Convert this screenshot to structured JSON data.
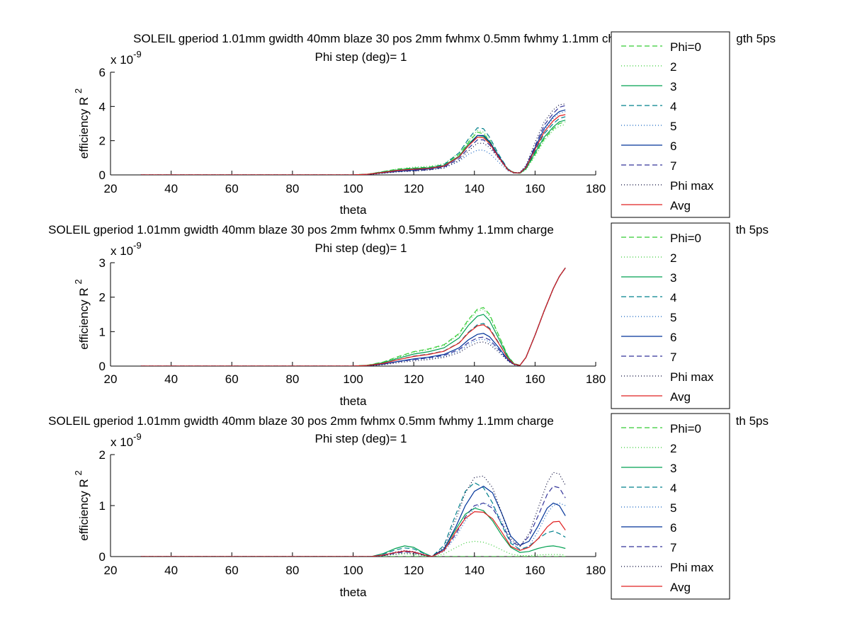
{
  "figure": {
    "background": "#ffffff"
  },
  "chart_data": [
    {
      "type": "line",
      "title": "SOLEIL gperiod 1.01mm gwidth 40mm blaze 30 pos 2mm fwhmx 0.5mm fwhmy 1.1mm charge",
      "title_suffix": "gth 5ps",
      "subtitle": "Phi step (deg)= 1",
      "xlabel": "theta",
      "ylabel": "efficiency R",
      "ylabel_sup": "2",
      "multiplier": "x 10",
      "multiplier_exp": "-9",
      "xlim": [
        20,
        180
      ],
      "ylim": [
        0,
        6
      ],
      "xticks": [
        20,
        40,
        60,
        80,
        100,
        120,
        140,
        160,
        180
      ],
      "yticks": [
        0,
        2,
        4,
        6
      ],
      "grid": false,
      "legend_position": "right",
      "x": [
        30,
        100,
        105,
        110,
        115,
        120,
        125,
        130,
        135,
        138,
        141,
        143,
        145,
        148,
        151,
        153,
        155,
        157,
        160,
        163,
        166,
        168,
        170
      ],
      "series": [
        {
          "name": "Phi=0",
          "color": "#33cc33",
          "dash": "7,4",
          "values": [
            0,
            0,
            0.05,
            0.2,
            0.35,
            0.4,
            0.45,
            0.6,
            1.2,
            1.9,
            2.5,
            2.4,
            2.0,
            1.1,
            0.35,
            0.15,
            0.1,
            0.35,
            1.2,
            2.1,
            2.7,
            3.0,
            3.1
          ]
        },
        {
          "name": "2",
          "color": "#33cc33",
          "dash": "1,3",
          "values": [
            0,
            0,
            0.05,
            0.2,
            0.35,
            0.45,
            0.5,
            0.65,
            1.3,
            2.0,
            2.6,
            2.5,
            2.1,
            1.15,
            0.35,
            0.15,
            0.08,
            0.3,
            1.1,
            2.0,
            2.6,
            2.85,
            2.95
          ]
        },
        {
          "name": "3",
          "color": "#00a050",
          "dash": "",
          "values": [
            0,
            0,
            0.04,
            0.18,
            0.3,
            0.38,
            0.42,
            0.55,
            1.1,
            1.8,
            2.3,
            2.25,
            1.9,
            1.05,
            0.3,
            0.12,
            0.1,
            0.35,
            1.3,
            2.2,
            2.8,
            3.1,
            3.2
          ]
        },
        {
          "name": "4",
          "color": "#00808c",
          "dash": "7,4",
          "values": [
            0,
            0,
            0.04,
            0.16,
            0.28,
            0.34,
            0.4,
            0.6,
            1.3,
            2.1,
            2.75,
            2.7,
            2.2,
            1.2,
            0.35,
            0.14,
            0.1,
            0.4,
            1.4,
            2.4,
            3.0,
            3.3,
            3.4
          ]
        },
        {
          "name": "5",
          "color": "#1060c0",
          "dash": "1,3",
          "values": [
            0,
            0,
            0.03,
            0.12,
            0.2,
            0.26,
            0.3,
            0.4,
            0.8,
            1.2,
            1.45,
            1.45,
            1.25,
            0.75,
            0.25,
            0.1,
            0.12,
            0.45,
            1.6,
            2.6,
            3.3,
            3.6,
            3.7
          ]
        },
        {
          "name": "6",
          "color": "#003399",
          "dash": "",
          "values": [
            0,
            0,
            0.03,
            0.13,
            0.22,
            0.28,
            0.35,
            0.5,
            1.05,
            1.7,
            2.3,
            2.3,
            1.95,
            1.1,
            0.32,
            0.13,
            0.12,
            0.45,
            1.6,
            2.7,
            3.4,
            3.7,
            3.8
          ]
        },
        {
          "name": "7",
          "color": "#333399",
          "dash": "7,4",
          "values": [
            0,
            0,
            0.03,
            0.12,
            0.2,
            0.25,
            0.3,
            0.45,
            0.95,
            1.55,
            2.05,
            2.05,
            1.75,
            1.0,
            0.3,
            0.12,
            0.12,
            0.5,
            1.7,
            2.9,
            3.6,
            3.95,
            4.05
          ]
        },
        {
          "name": "Phi max",
          "color": "#000033",
          "dash": "1,3",
          "values": [
            0,
            0,
            0.02,
            0.1,
            0.18,
            0.22,
            0.28,
            0.4,
            0.85,
            1.4,
            1.85,
            1.85,
            1.6,
            0.95,
            0.3,
            0.12,
            0.15,
            0.55,
            1.9,
            3.1,
            3.8,
            4.1,
            4.15
          ]
        },
        {
          "name": "Avg",
          "color": "#e02020",
          "dash": "",
          "values": [
            0,
            0,
            0.04,
            0.15,
            0.27,
            0.33,
            0.38,
            0.52,
            1.07,
            1.7,
            2.2,
            2.17,
            1.84,
            1.03,
            0.31,
            0.13,
            0.11,
            0.42,
            1.49,
            2.51,
            3.16,
            3.45,
            3.52
          ]
        }
      ]
    },
    {
      "type": "line",
      "title": "SOLEIL gperiod 1.01mm gwidth 40mm blaze 30 pos 2mm fwhmx 0.5mm fwhmy 1.1mm charge",
      "title_suffix": "th 5ps",
      "subtitle": "Phi step (deg)= 1",
      "xlabel": "theta",
      "ylabel": "efficiency R",
      "ylabel_sup": "2",
      "multiplier": "x 10",
      "multiplier_exp": "-9",
      "xlim": [
        20,
        180
      ],
      "ylim": [
        0,
        3
      ],
      "xticks": [
        20,
        40,
        60,
        80,
        100,
        120,
        140,
        160,
        180
      ],
      "yticks": [
        0,
        1,
        2,
        3
      ],
      "grid": false,
      "legend_position": "right",
      "x": [
        30,
        100,
        105,
        110,
        115,
        120,
        125,
        130,
        135,
        138,
        141,
        143,
        145,
        148,
        151,
        153,
        155,
        157,
        160,
        163,
        166,
        168,
        170
      ],
      "series": [
        {
          "name": "Phi=0",
          "color": "#33cc33",
          "dash": "7,4",
          "values": [
            0,
            0,
            0.03,
            0.12,
            0.28,
            0.42,
            0.5,
            0.62,
            0.95,
            1.35,
            1.65,
            1.7,
            1.5,
            0.9,
            0.3,
            0.08,
            0.02,
            0.25,
            0.9,
            1.6,
            2.25,
            2.6,
            2.85
          ]
        },
        {
          "name": "2",
          "color": "#33cc33",
          "dash": "1,3",
          "values": [
            0,
            0,
            0.03,
            0.11,
            0.26,
            0.4,
            0.48,
            0.6,
            0.92,
            1.3,
            1.6,
            1.65,
            1.45,
            0.88,
            0.3,
            0.08,
            0.02,
            0.25,
            0.9,
            1.6,
            2.25,
            2.6,
            2.85
          ]
        },
        {
          "name": "3",
          "color": "#00a050",
          "dash": "",
          "values": [
            0,
            0,
            0.025,
            0.1,
            0.23,
            0.35,
            0.42,
            0.53,
            0.82,
            1.18,
            1.45,
            1.5,
            1.32,
            0.8,
            0.27,
            0.07,
            0.02,
            0.25,
            0.9,
            1.6,
            2.25,
            2.6,
            2.85
          ]
        },
        {
          "name": "4",
          "color": "#00808c",
          "dash": "7,4",
          "values": [
            0,
            0,
            0.02,
            0.08,
            0.19,
            0.29,
            0.35,
            0.44,
            0.68,
            0.98,
            1.2,
            1.24,
            1.1,
            0.68,
            0.23,
            0.06,
            0.02,
            0.25,
            0.9,
            1.6,
            2.25,
            2.6,
            2.85
          ]
        },
        {
          "name": "5",
          "color": "#1060c0",
          "dash": "1,3",
          "values": [
            0,
            0,
            0.01,
            0.05,
            0.12,
            0.18,
            0.22,
            0.28,
            0.44,
            0.63,
            0.76,
            0.78,
            0.7,
            0.45,
            0.16,
            0.04,
            0.02,
            0.25,
            0.9,
            1.6,
            2.25,
            2.6,
            2.85
          ]
        },
        {
          "name": "6",
          "color": "#003399",
          "dash": "",
          "values": [
            0,
            0,
            0.015,
            0.06,
            0.14,
            0.21,
            0.26,
            0.34,
            0.53,
            0.76,
            0.92,
            0.95,
            0.85,
            0.54,
            0.19,
            0.05,
            0.02,
            0.25,
            0.9,
            1.6,
            2.25,
            2.6,
            2.85
          ]
        },
        {
          "name": "7",
          "color": "#333399",
          "dash": "7,4",
          "values": [
            0,
            0,
            0.012,
            0.055,
            0.13,
            0.19,
            0.24,
            0.31,
            0.48,
            0.68,
            0.82,
            0.84,
            0.76,
            0.49,
            0.17,
            0.045,
            0.02,
            0.25,
            0.9,
            1.6,
            2.25,
            2.6,
            2.85
          ]
        },
        {
          "name": "Phi max",
          "color": "#000033",
          "dash": "1,3",
          "values": [
            0,
            0,
            0.01,
            0.04,
            0.1,
            0.15,
            0.19,
            0.25,
            0.39,
            0.56,
            0.68,
            0.7,
            0.63,
            0.41,
            0.15,
            0.04,
            0.02,
            0.25,
            0.9,
            1.6,
            2.25,
            2.6,
            2.85
          ]
        },
        {
          "name": "Avg",
          "color": "#e02020",
          "dash": "",
          "values": [
            0,
            0,
            0.02,
            0.08,
            0.19,
            0.28,
            0.34,
            0.43,
            0.67,
            0.96,
            1.17,
            1.2,
            1.07,
            0.66,
            0.23,
            0.06,
            0.02,
            0.25,
            0.9,
            1.6,
            2.25,
            2.6,
            2.85
          ]
        }
      ]
    },
    {
      "type": "line",
      "title": "SOLEIL gperiod 1.01mm gwidth 40mm blaze 30 pos 2mm fwhmx 0.5mm fwhmy 1.1mm charge",
      "title_suffix": "th 5ps",
      "subtitle": "Phi step (deg)= 1",
      "xlabel": "theta",
      "ylabel": "efficiency R",
      "ylabel_sup": "2",
      "multiplier": "x 10",
      "multiplier_exp": "-9",
      "xlim": [
        20,
        180
      ],
      "ylim": [
        0,
        2
      ],
      "xticks": [
        20,
        40,
        60,
        80,
        100,
        120,
        140,
        160,
        180
      ],
      "yticks": [
        0,
        1,
        2
      ],
      "grid": false,
      "legend_position": "right",
      "x": [
        30,
        100,
        106,
        110,
        114,
        117,
        120,
        123,
        126,
        130,
        134,
        137,
        140,
        143,
        146,
        149,
        152,
        155,
        158,
        161,
        164,
        166,
        168,
        170
      ],
      "series": [
        {
          "name": "Phi=0",
          "color": "#33cc33",
          "dash": "7,4",
          "values": [
            0,
            0,
            0,
            0,
            0,
            0,
            0,
            0,
            0,
            0,
            0,
            0,
            0,
            0,
            0,
            0,
            0,
            0,
            0,
            0,
            0,
            0,
            0,
            0
          ]
        },
        {
          "name": "2",
          "color": "#33cc33",
          "dash": "1,3",
          "values": [
            0,
            0,
            0,
            0.02,
            0.04,
            0.05,
            0.04,
            0.02,
            0,
            0.05,
            0.18,
            0.27,
            0.3,
            0.28,
            0.22,
            0.13,
            0.05,
            0.02,
            0.02,
            0.03,
            0.04,
            0.04,
            0.04,
            0.03
          ]
        },
        {
          "name": "3",
          "color": "#00a050",
          "dash": "",
          "values": [
            0,
            0,
            0,
            0.06,
            0.16,
            0.21,
            0.18,
            0.08,
            0,
            0.15,
            0.55,
            0.83,
            0.95,
            0.9,
            0.7,
            0.42,
            0.18,
            0.08,
            0.1,
            0.16,
            0.2,
            0.21,
            0.19,
            0.16
          ]
        },
        {
          "name": "4",
          "color": "#00808c",
          "dash": "7,4",
          "values": [
            0,
            0,
            0,
            0.05,
            0.13,
            0.17,
            0.15,
            0.07,
            0,
            0.22,
            0.85,
            1.28,
            1.45,
            1.35,
            1.05,
            0.62,
            0.26,
            0.14,
            0.2,
            0.35,
            0.47,
            0.5,
            0.45,
            0.38
          ]
        },
        {
          "name": "5",
          "color": "#1060c0",
          "dash": "1,3",
          "values": [
            0,
            0,
            0,
            0.03,
            0.09,
            0.12,
            0.1,
            0.05,
            0,
            0.1,
            0.4,
            0.7,
            0.95,
            1.05,
            1.0,
            0.7,
            0.3,
            0.12,
            0.2,
            0.5,
            0.85,
            1.0,
            1.05,
            1.0
          ]
        },
        {
          "name": "6",
          "color": "#003399",
          "dash": "",
          "values": [
            0,
            0,
            0,
            0.03,
            0.08,
            0.11,
            0.09,
            0.04,
            0,
            0.15,
            0.6,
            1.0,
            1.28,
            1.38,
            1.25,
            0.85,
            0.4,
            0.22,
            0.3,
            0.6,
            0.95,
            1.05,
            1.0,
            0.8
          ]
        },
        {
          "name": "7",
          "color": "#333399",
          "dash": "7,4",
          "values": [
            0,
            0,
            0,
            0.02,
            0.07,
            0.09,
            0.08,
            0.03,
            0,
            0.12,
            0.45,
            0.78,
            1.0,
            1.05,
            0.95,
            0.65,
            0.3,
            0.2,
            0.4,
            0.8,
            1.22,
            1.38,
            1.35,
            1.15
          ]
        },
        {
          "name": "Phi max",
          "color": "#000033",
          "dash": "1,3",
          "values": [
            0,
            0,
            0,
            0.02,
            0.05,
            0.07,
            0.06,
            0.03,
            0,
            0.18,
            0.75,
            1.25,
            1.55,
            1.58,
            1.35,
            0.85,
            0.35,
            0.2,
            0.45,
            0.95,
            1.45,
            1.65,
            1.62,
            1.4
          ]
        },
        {
          "name": "Avg",
          "color": "#e02020",
          "dash": "",
          "values": [
            0,
            0,
            0,
            0.03,
            0.08,
            0.11,
            0.09,
            0.04,
            0,
            0.12,
            0.5,
            0.75,
            0.88,
            0.87,
            0.74,
            0.48,
            0.2,
            0.12,
            0.18,
            0.35,
            0.58,
            0.68,
            0.69,
            0.52
          ]
        }
      ]
    }
  ]
}
